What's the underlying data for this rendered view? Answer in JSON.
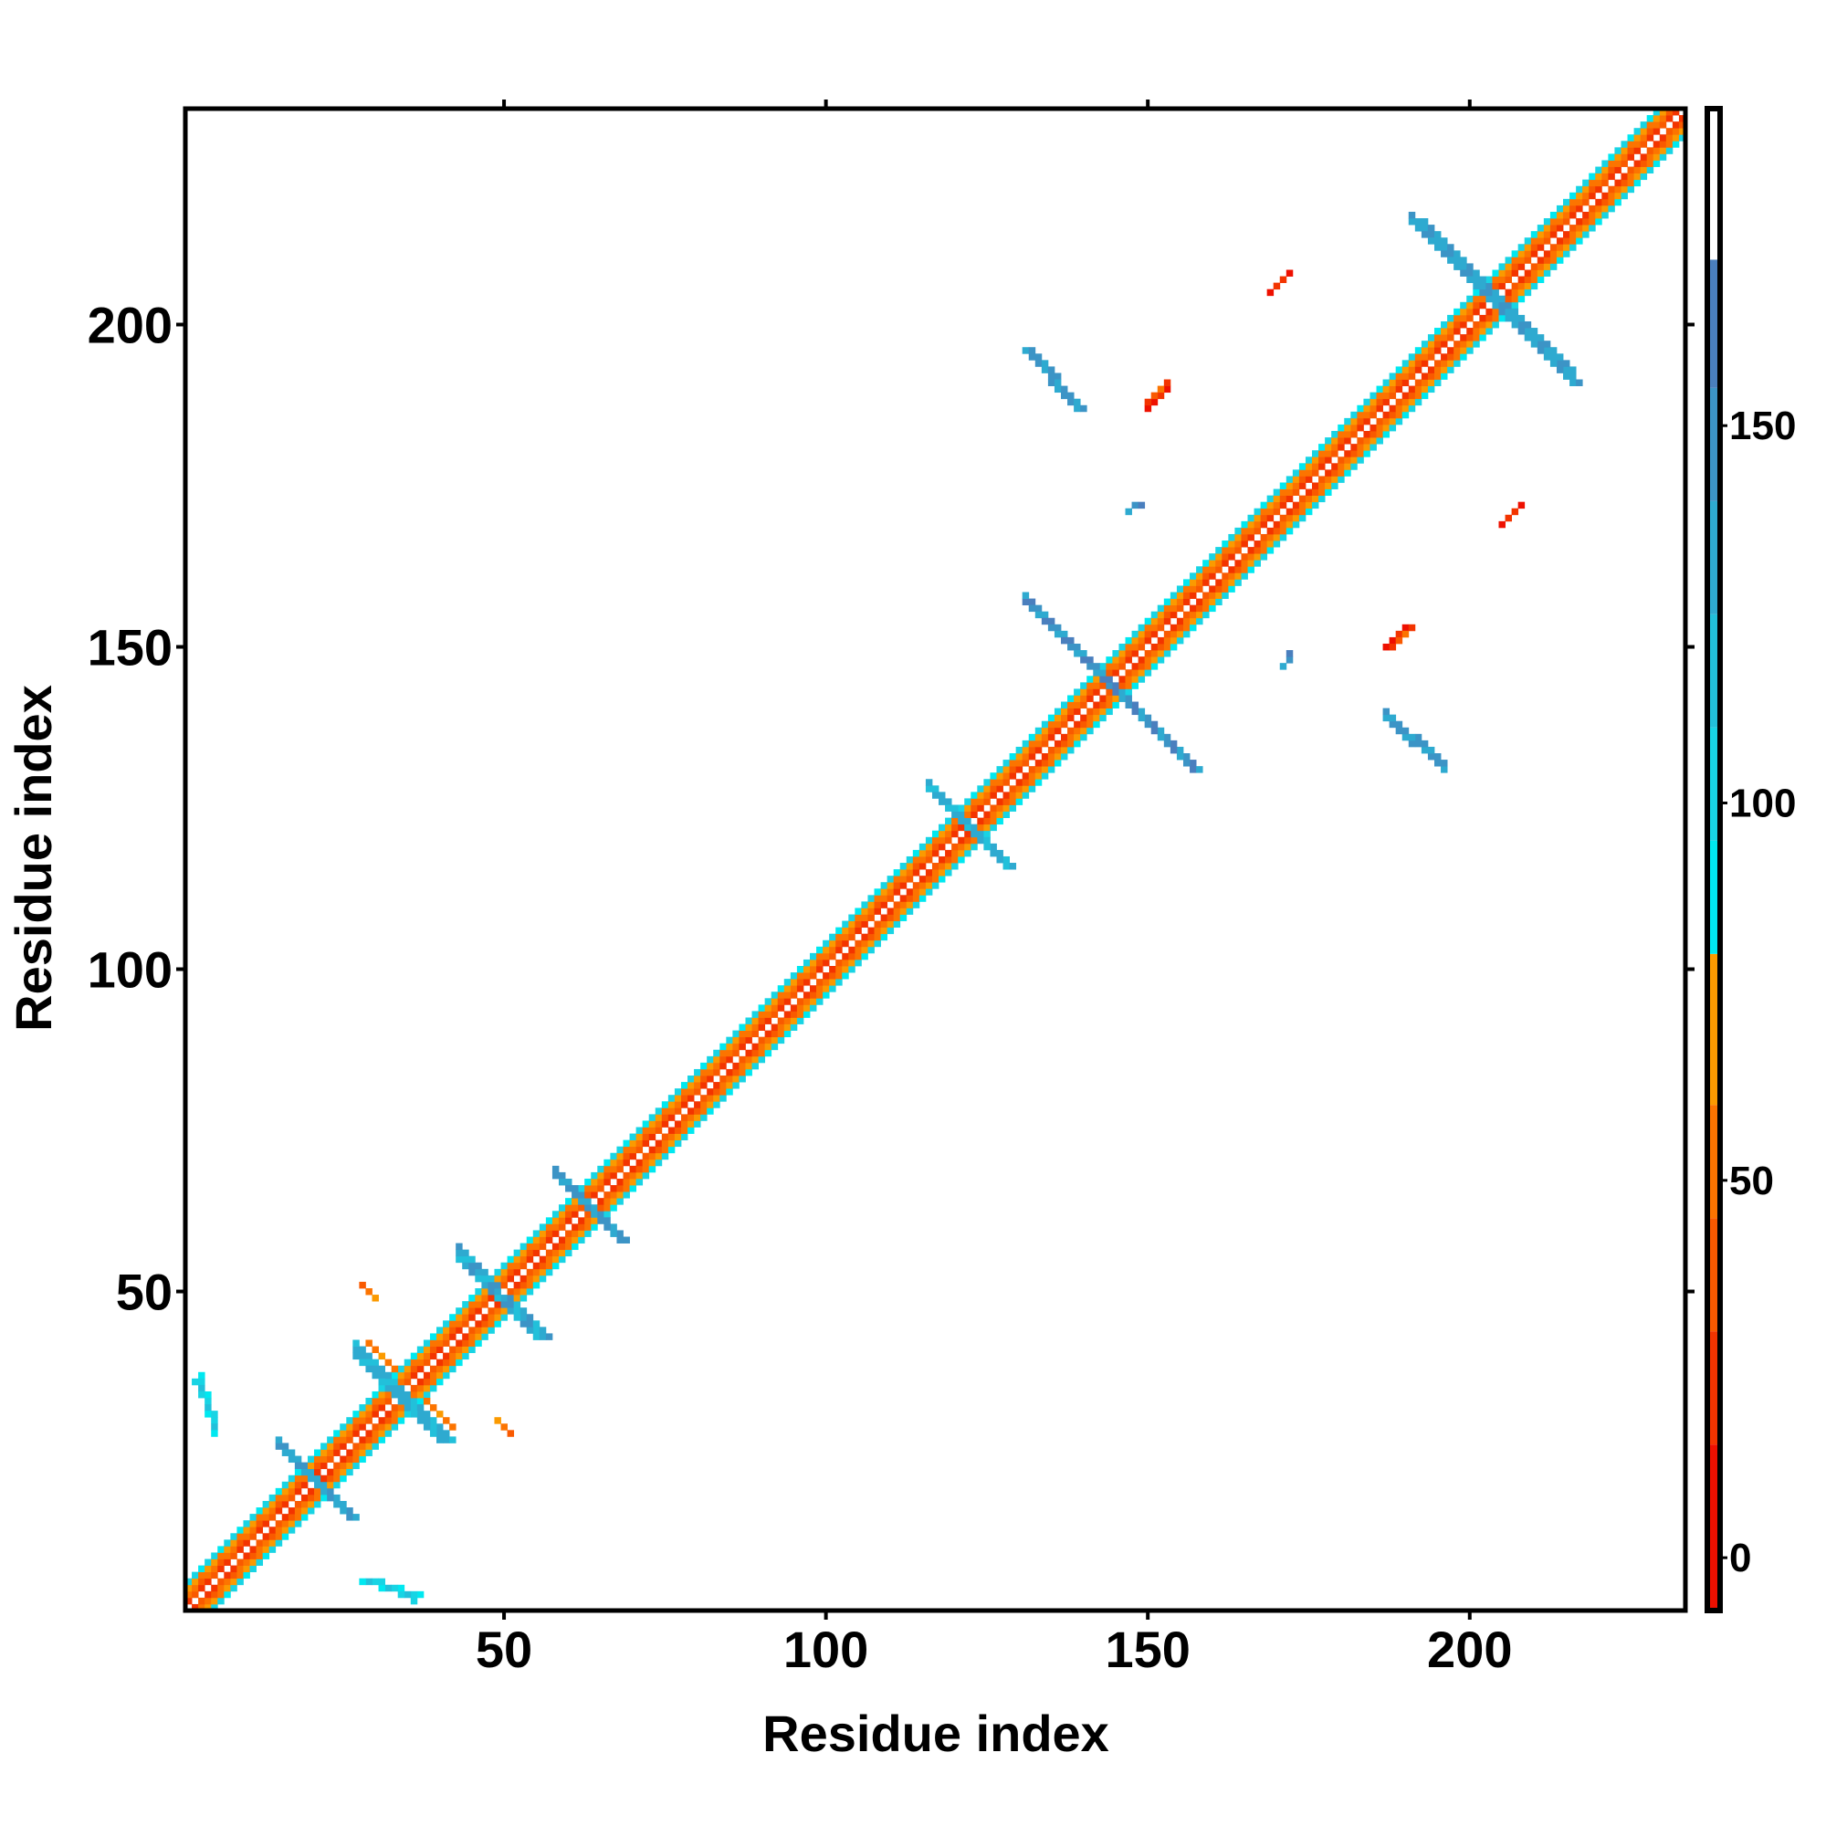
{
  "chart_data": {
    "type": "heatmap",
    "title": "",
    "xlabel": "Residue index",
    "ylabel": "Residue index",
    "n_residues": 233,
    "xlim": [
      0.5,
      233.5
    ],
    "ylim": [
      0.5,
      233.5
    ],
    "x_ticks": [
      50,
      100,
      150,
      200
    ],
    "y_ticks": [
      50,
      100,
      150,
      200
    ],
    "colorbar": {
      "range": [
        -7,
        192
      ],
      "ticks": [
        0,
        50,
        100,
        150
      ],
      "bands": [
        {
          "max": 15,
          "color": "#ee1000"
        },
        {
          "max": 30,
          "color": "#f33400"
        },
        {
          "max": 45,
          "color": "#f95a00"
        },
        {
          "max": 60,
          "color": "#fc7400"
        },
        {
          "max": 80,
          "color": "#fb9a00"
        },
        {
          "max": 95,
          "color": "#00e8f0"
        },
        {
          "max": 110,
          "color": "#18d4e4"
        },
        {
          "max": 125,
          "color": "#22c0da"
        },
        {
          "max": 140,
          "color": "#2eaad0"
        },
        {
          "max": 155,
          "color": "#3c94c6"
        },
        {
          "max": 172,
          "color": "#4a7fbe"
        },
        {
          "max": 192,
          "color": "#ffffff"
        }
      ]
    },
    "diagonal": [
      {
        "offset": 1,
        "value": 25
      },
      {
        "offset": 2,
        "value": 50
      },
      {
        "offset": 3,
        "value": 65
      },
      {
        "offset": 4,
        "value": 100
      }
    ],
    "contact_segments": [
      {
        "from": [
          131,
          157
        ],
        "to": [
          157,
          131
        ],
        "width": 2,
        "value": 150
      },
      {
        "from": [
          192,
          216
        ],
        "to": [
          216,
          191
        ],
        "width": 2,
        "value": 140
      },
      {
        "from": [
          131,
          196
        ],
        "to": [
          139,
          187
        ],
        "width": 2,
        "value": 145
      },
      {
        "from": [
          116,
          128
        ],
        "to": [
          128,
          116
        ],
        "width": 2,
        "value": 130
      },
      {
        "from": [
          58,
          68
        ],
        "to": [
          68,
          58
        ],
        "width": 2,
        "value": 145
      },
      {
        "from": [
          43,
          55
        ],
        "to": [
          56,
          43
        ],
        "width": 2,
        "value": 135
      },
      {
        "from": [
          27,
          40
        ],
        "to": [
          40,
          27
        ],
        "width": 3,
        "value": 128
      },
      {
        "from": [
          15,
          26
        ],
        "to": [
          26,
          15
        ],
        "width": 2,
        "value": 140
      },
      {
        "from": [
          169,
          205
        ],
        "to": [
          172,
          208
        ],
        "width": 1,
        "value": 20
      },
      {
        "from": [
          150,
          187
        ],
        "to": [
          153,
          190
        ],
        "width": 1,
        "value": 15
      },
      {
        "from": [
          147,
          171
        ],
        "to": [
          149,
          172
        ],
        "width": 1,
        "value": 150
      },
      {
        "from": [
          188,
          150
        ],
        "to": [
          191,
          153
        ],
        "width": 1,
        "value": 40
      },
      {
        "from": [
          3,
          37
        ],
        "to": [
          5,
          28
        ],
        "width": 1,
        "value": 105
      },
      {
        "from": [
          30,
          5
        ],
        "to": [
          36,
          2
        ],
        "width": 1,
        "value": 110
      },
      {
        "from": [
          28,
          51
        ],
        "to": [
          30,
          49
        ],
        "width": 1,
        "value": 55
      },
      {
        "from": [
          38,
          33
        ],
        "to": [
          42,
          29
        ],
        "width": 1,
        "value": 60
      }
    ]
  }
}
